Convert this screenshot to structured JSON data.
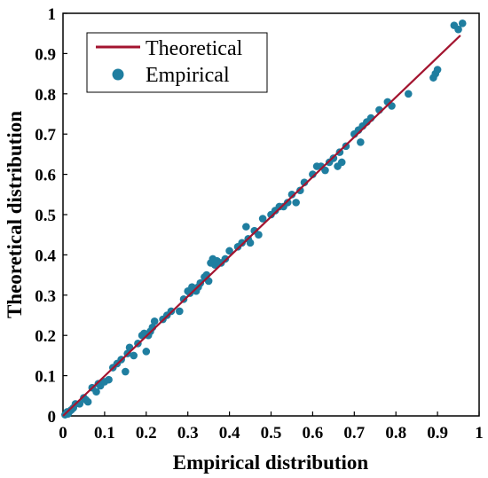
{
  "chart_data": {
    "type": "scatter",
    "xlabel": "Empirical distribution",
    "ylabel": "Theoretical distribution",
    "xlim": [
      0,
      1
    ],
    "ylim": [
      0,
      1
    ],
    "x_ticks": [
      "0",
      "0.1",
      "0.2",
      "0.3",
      "0.4",
      "0.5",
      "0.6",
      "0.7",
      "0.8",
      "0.9",
      "1"
    ],
    "y_ticks": [
      "0",
      "0.1",
      "0.2",
      "0.3",
      "0.4",
      "0.5",
      "0.6",
      "0.7",
      "0.8",
      "0.9",
      "1"
    ],
    "grid": false,
    "legend_position": "top-left",
    "line_color": "#a3142f",
    "marker_color": "#1f7ea0",
    "series": [
      {
        "name": "Theoretical",
        "kind": "line",
        "x": [
          0.0,
          0.955
        ],
        "y": [
          0.0,
          0.945
        ]
      },
      {
        "name": "Empirical",
        "kind": "scatter",
        "x": [
          0.005,
          0.008,
          0.01,
          0.012,
          0.015,
          0.02,
          0.025,
          0.03,
          0.04,
          0.05,
          0.055,
          0.06,
          0.07,
          0.08,
          0.085,
          0.09,
          0.1,
          0.11,
          0.12,
          0.13,
          0.14,
          0.15,
          0.155,
          0.16,
          0.17,
          0.18,
          0.19,
          0.195,
          0.2,
          0.205,
          0.21,
          0.215,
          0.22,
          0.24,
          0.25,
          0.26,
          0.28,
          0.29,
          0.3,
          0.305,
          0.31,
          0.32,
          0.325,
          0.33,
          0.34,
          0.345,
          0.35,
          0.355,
          0.36,
          0.365,
          0.37,
          0.38,
          0.39,
          0.4,
          0.42,
          0.43,
          0.44,
          0.445,
          0.45,
          0.46,
          0.47,
          0.48,
          0.5,
          0.51,
          0.52,
          0.53,
          0.54,
          0.55,
          0.56,
          0.57,
          0.58,
          0.6,
          0.61,
          0.62,
          0.63,
          0.64,
          0.65,
          0.66,
          0.665,
          0.67,
          0.68,
          0.7,
          0.71,
          0.715,
          0.72,
          0.73,
          0.74,
          0.76,
          0.78,
          0.79,
          0.83,
          0.89,
          0.895,
          0.9,
          0.94,
          0.95,
          0.96
        ],
        "y": [
          0.003,
          0.005,
          0.01,
          0.005,
          0.01,
          0.015,
          0.02,
          0.03,
          0.03,
          0.045,
          0.04,
          0.035,
          0.07,
          0.06,
          0.08,
          0.075,
          0.085,
          0.09,
          0.12,
          0.13,
          0.14,
          0.11,
          0.155,
          0.17,
          0.15,
          0.18,
          0.2,
          0.205,
          0.16,
          0.2,
          0.21,
          0.22,
          0.235,
          0.24,
          0.25,
          0.26,
          0.26,
          0.29,
          0.31,
          0.305,
          0.32,
          0.31,
          0.32,
          0.33,
          0.345,
          0.35,
          0.335,
          0.38,
          0.39,
          0.375,
          0.385,
          0.38,
          0.39,
          0.41,
          0.42,
          0.43,
          0.47,
          0.44,
          0.43,
          0.46,
          0.45,
          0.49,
          0.5,
          0.51,
          0.52,
          0.52,
          0.53,
          0.55,
          0.53,
          0.56,
          0.58,
          0.6,
          0.62,
          0.62,
          0.61,
          0.63,
          0.64,
          0.62,
          0.655,
          0.63,
          0.67,
          0.7,
          0.71,
          0.68,
          0.72,
          0.73,
          0.74,
          0.76,
          0.78,
          0.77,
          0.8,
          0.84,
          0.85,
          0.86,
          0.97,
          0.96,
          0.975
        ]
      }
    ]
  }
}
